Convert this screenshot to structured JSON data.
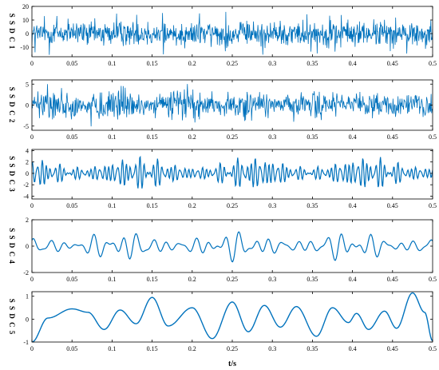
{
  "chart_data": [
    {
      "type": "line",
      "ylabel": "S S D C  1",
      "xlim": [
        0,
        0.5
      ],
      "ylim": [
        -17,
        20
      ],
      "x_ticks": [
        "0",
        "0.05",
        "0.1",
        "0.15",
        "0.2",
        "0.25",
        "0.3",
        "0.35",
        "0.4",
        "0.45",
        "0.5"
      ],
      "y_ticks": [
        {
          "value": 20,
          "label": "20"
        },
        {
          "value": 10,
          "label": "10"
        },
        {
          "value": 0,
          "label": "0"
        },
        {
          "value": -10,
          "label": "-10"
        }
      ],
      "signal": {
        "style": "noise",
        "points": 900,
        "amplitude": 6.5,
        "peak": 16
      },
      "series_color": "#0072BD"
    },
    {
      "type": "line",
      "ylabel": "S S D C  2",
      "xlim": [
        0,
        0.5
      ],
      "ylim": [
        -6,
        6
      ],
      "x_ticks": [
        "0",
        "0.05",
        "0.1",
        "0.15",
        "0.2",
        "0.25",
        "0.3",
        "0.35",
        "0.4",
        "0.45",
        "0.5"
      ],
      "y_ticks": [
        {
          "value": 5,
          "label": "5"
        },
        {
          "value": 0,
          "label": "0"
        },
        {
          "value": -5,
          "label": "-5"
        }
      ],
      "signal": {
        "style": "bursty",
        "points": 800,
        "amplitude": 2.6,
        "peak": 5.2
      },
      "series_color": "#0072BD"
    },
    {
      "type": "line",
      "ylabel": "S S D C  3",
      "xlim": [
        0,
        0.5
      ],
      "ylim": [
        -4.5,
        4.2
      ],
      "x_ticks": [
        "0",
        "0.05",
        "0.1",
        "0.15",
        "0.2",
        "0.25",
        "0.3",
        "0.35",
        "0.4",
        "0.45",
        "0.5"
      ],
      "y_ticks": [
        {
          "value": 4,
          "label": "4"
        },
        {
          "value": 2,
          "label": "2"
        },
        {
          "value": 0,
          "label": "0"
        },
        {
          "value": -2,
          "label": "-2"
        },
        {
          "value": -4,
          "label": "-4"
        }
      ],
      "signal": {
        "style": "oscillation",
        "points": 700,
        "freqs": [
          180,
          230,
          140
        ],
        "amplitude": 1.5,
        "peak": 4.2
      },
      "series_color": "#0072BD"
    },
    {
      "type": "line",
      "ylabel": "S S D C  4",
      "xlim": [
        0,
        0.5
      ],
      "ylim": [
        -2,
        2
      ],
      "x_ticks": [
        "0",
        "0.05",
        "0.1",
        "0.15",
        "0.2",
        "0.25",
        "0.3",
        "0.35",
        "0.4",
        "0.45",
        "0.5"
      ],
      "y_ticks": [
        {
          "value": 2,
          "label": "2"
        },
        {
          "value": 0,
          "label": "0"
        },
        {
          "value": -2,
          "label": "-2"
        }
      ],
      "signal": {
        "style": "oscillation",
        "points": 500,
        "freqs": [
          55,
          78,
          38
        ],
        "amplitude": 0.6,
        "peak": 1.8
      },
      "series_color": "#0072BD"
    },
    {
      "type": "line",
      "ylabel": "S S D C  5",
      "xlim": [
        0,
        0.5
      ],
      "ylim": [
        -1,
        1.2
      ],
      "x_ticks": [
        "0",
        "0.05",
        "0.1",
        "0.15",
        "0.2",
        "0.25",
        "0.3",
        "0.35",
        "0.4",
        "0.45",
        "0.5"
      ],
      "x_label": "t/s",
      "y_ticks": [
        {
          "value": 1,
          "label": "1"
        },
        {
          "value": 0,
          "label": "0"
        },
        {
          "value": -1,
          "label": "-1"
        }
      ],
      "signal": {
        "style": "knots",
        "knots": [
          [
            0,
            -1
          ],
          [
            0.02,
            0.05
          ],
          [
            0.05,
            0.45
          ],
          [
            0.07,
            0.3
          ],
          [
            0.09,
            -0.45
          ],
          [
            0.11,
            0.4
          ],
          [
            0.13,
            -0.2
          ],
          [
            0.15,
            0.95
          ],
          [
            0.17,
            -0.3
          ],
          [
            0.2,
            0.5
          ],
          [
            0.225,
            -0.85
          ],
          [
            0.25,
            0.75
          ],
          [
            0.27,
            -0.55
          ],
          [
            0.29,
            0.6
          ],
          [
            0.31,
            -0.35
          ],
          [
            0.33,
            0.55
          ],
          [
            0.355,
            -0.75
          ],
          [
            0.375,
            0.5
          ],
          [
            0.395,
            -0.15
          ],
          [
            0.405,
            0.25
          ],
          [
            0.42,
            -0.45
          ],
          [
            0.44,
            0.35
          ],
          [
            0.455,
            -0.4
          ],
          [
            0.475,
            1.15
          ],
          [
            0.49,
            0.3
          ],
          [
            0.5,
            -0.95
          ]
        ]
      },
      "series_color": "#0072BD"
    }
  ]
}
